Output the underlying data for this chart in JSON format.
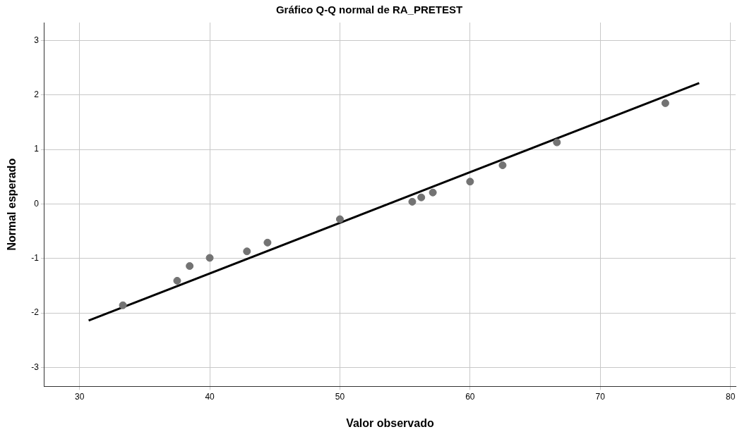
{
  "chart_data": {
    "type": "scatter",
    "title": "Gráfico Q-Q normal de RA_PRETEST",
    "xlabel": "Valor observado",
    "ylabel": "Normal esperado",
    "xlim": [
      27.3,
      80.4
    ],
    "xticks": [
      30,
      40,
      50,
      60,
      70,
      80
    ],
    "ylim": [
      -3.35,
      3.33
    ],
    "yticks": [
      -3,
      -2,
      -1,
      0,
      1,
      2,
      3
    ],
    "grid": true,
    "legend": false,
    "series": [
      {
        "marker": "circle",
        "color": "#737373",
        "x": [
          33.33,
          37.5,
          38.46,
          40,
          42.86,
          44.44,
          50,
          55.56,
          56.25,
          57.14,
          60,
          62.5,
          66.67,
          75
        ],
        "values": [
          -1.86,
          -1.41,
          -1.14,
          -0.99,
          -0.87,
          -0.71,
          -0.28,
          0.04,
          0.12,
          0.21,
          0.41,
          0.71,
          1.13,
          1.85
        ]
      },
      {
        "type": "line",
        "marker": "none",
        "color": "#000000",
        "x": [
          30.7,
          77.6
        ],
        "values": [
          -2.14,
          2.22
        ]
      }
    ]
  }
}
